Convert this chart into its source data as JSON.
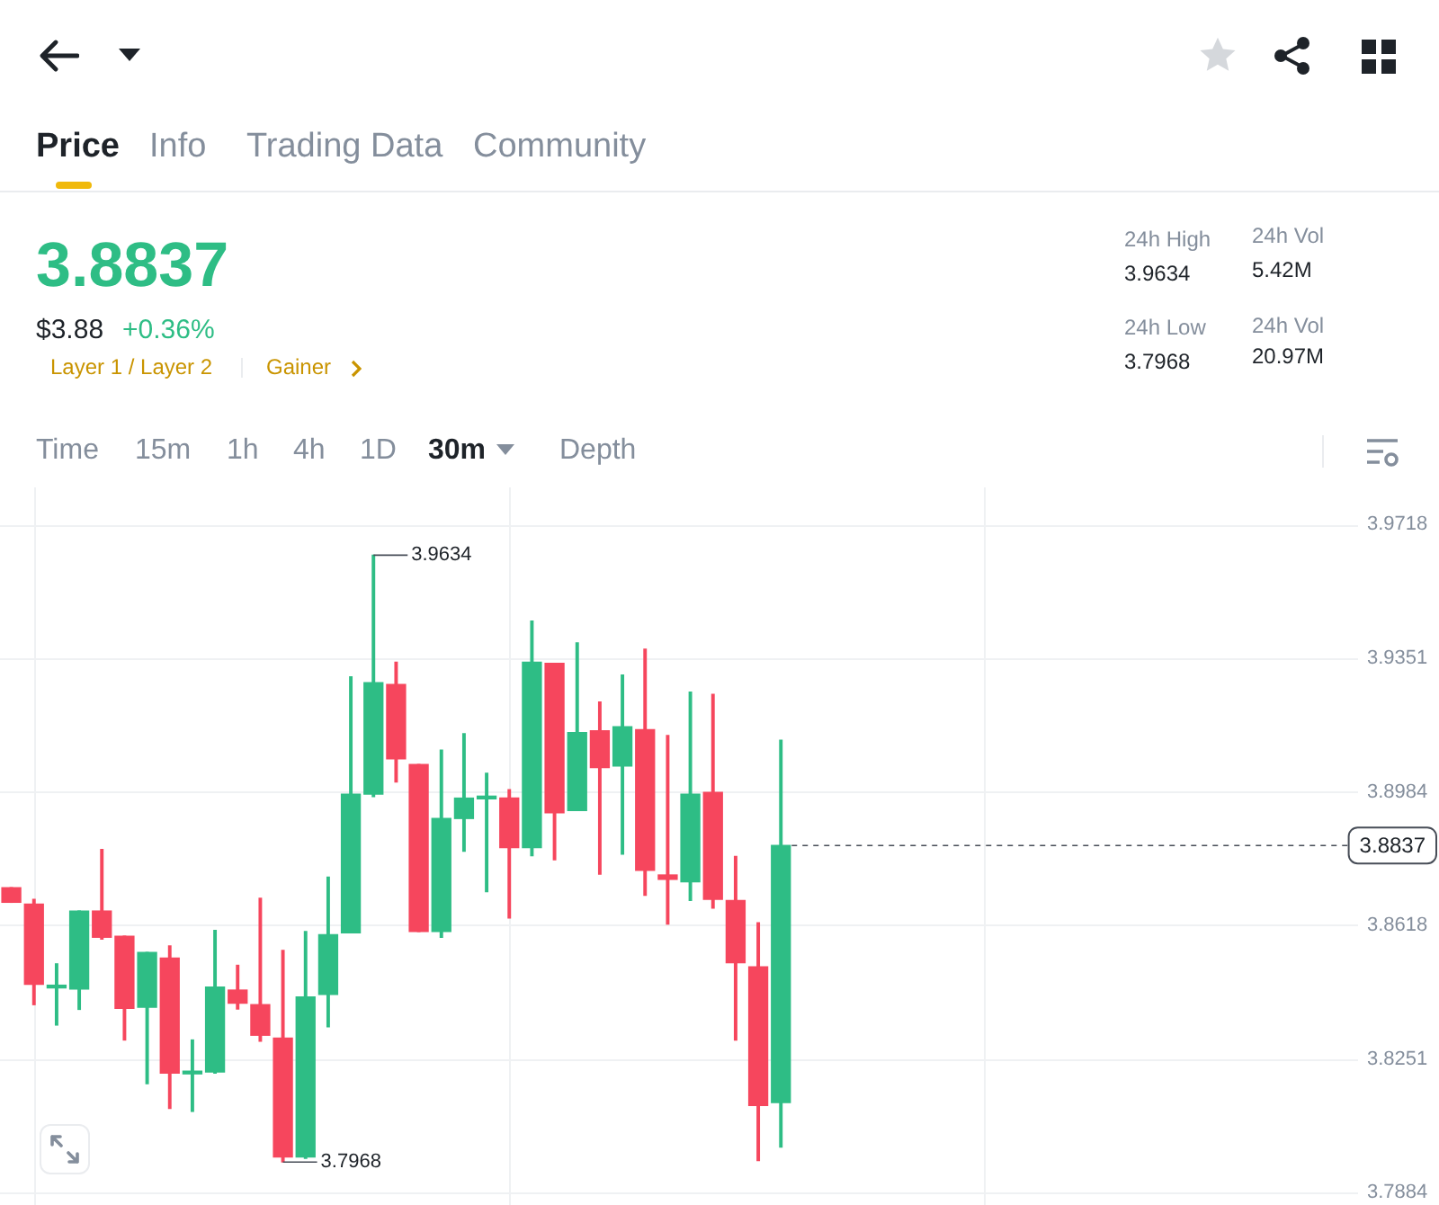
{
  "chart_data": {
    "type": "candlestick",
    "categories": [
      null,
      null,
      null,
      null,
      null,
      null,
      null,
      null,
      null,
      null,
      null,
      null,
      null,
      null,
      null,
      null,
      null,
      null,
      null,
      null,
      null,
      null,
      null,
      null,
      null,
      null,
      null,
      null,
      null,
      null,
      null,
      null,
      null,
      null,
      null,
      null,
      null,
      null,
      null,
      null,
      null,
      null,
      null,
      null,
      null,
      null,
      null,
      null,
      null,
      null,
      null,
      null,
      null,
      null,
      null,
      null,
      null,
      null,
      null,
      null
    ],
    "ohlc": [
      [
        3.8721,
        3.8721,
        3.8681,
        3.8681
      ],
      [
        3.8676,
        3.8689,
        3.84,
        3.8456
      ],
      [
        3.8446,
        3.8512,
        3.8344,
        3.845
      ],
      [
        3.8443,
        3.8657,
        3.8387,
        3.8657
      ],
      [
        3.8657,
        3.8826,
        3.858,
        3.8585
      ],
      [
        3.8588,
        3.8588,
        3.8303,
        3.839
      ],
      [
        3.8393,
        3.8543,
        3.8183,
        3.8543
      ],
      [
        3.8528,
        3.8561,
        3.8115,
        3.8212
      ],
      [
        3.821,
        3.8303,
        3.8107,
        3.8214
      ],
      [
        3.8215,
        3.8604,
        3.8212,
        3.8448
      ],
      [
        3.844,
        3.8508,
        3.8388,
        3.8404
      ],
      [
        3.84,
        3.8692,
        3.83,
        3.8316
      ],
      [
        3.8308,
        3.8549,
        3.7968,
        3.7982
      ],
      [
        3.7982,
        3.8601,
        3.7978,
        3.8421
      ],
      [
        3.8428,
        3.875,
        3.8339,
        3.8592
      ],
      [
        3.8597,
        3.93,
        3.8597,
        3.8978
      ],
      [
        3.8978,
        3.9634,
        3.8971,
        3.9284
      ],
      [
        3.9279,
        3.934,
        3.9011,
        3.9075
      ],
      [
        3.9059,
        3.9059,
        3.8601,
        3.8601
      ],
      [
        3.8601,
        3.9099,
        3.8585,
        3.8911
      ],
      [
        3.8911,
        3.9144,
        3.8821,
        3.8967
      ],
      [
        3.8965,
        3.9035,
        3.871,
        3.8969
      ],
      [
        3.8967,
        3.899,
        3.8638,
        3.8831
      ],
      [
        3.8831,
        3.9453,
        3.8809,
        3.934
      ],
      [
        3.9337,
        3.9337,
        3.8798,
        3.8927
      ],
      [
        3.8933,
        3.9393,
        3.8933,
        3.9147
      ],
      [
        3.9152,
        3.9231,
        3.8758,
        3.9051
      ],
      [
        3.9055,
        3.9305,
        3.8813,
        3.9163
      ],
      [
        3.9155,
        3.9376,
        3.87,
        3.8769
      ],
      [
        3.8756,
        3.9139,
        3.8621,
        3.8744
      ],
      [
        3.8737,
        3.9258,
        3.8686,
        3.8978
      ],
      [
        3.8983,
        3.9252,
        3.8665,
        3.8689
      ],
      [
        3.8686,
        3.8807,
        3.8303,
        3.8515
      ],
      [
        3.8504,
        3.8625,
        3.7972,
        3.8123
      ],
      [
        3.8131,
        3.9126,
        3.8009,
        3.8837
      ],
      null,
      null,
      null,
      null,
      null,
      null,
      null,
      null,
      null,
      null,
      null,
      null,
      null,
      null,
      null,
      null,
      null,
      null,
      null,
      null,
      null,
      null,
      null,
      null,
      null
    ],
    "colors": [
      "#f6465d",
      "#f6465d",
      "#2ebd85",
      "#2ebd85",
      "#f6465d",
      "#f6465d",
      "#2ebd85",
      "#f6465d",
      "#2ebd85",
      "#2ebd85",
      "#f6465d",
      "#f6465d",
      "#f6465d",
      "#2ebd85",
      "#2ebd85",
      "#2ebd85",
      "#2ebd85",
      "#f6465d",
      "#f6465d",
      "#2ebd85",
      "#2ebd85",
      "#2ebd85",
      "#f6465d",
      "#2ebd85",
      "#f6465d",
      "#2ebd85",
      "#f6465d",
      "#2ebd85",
      "#f6465d",
      "#f6465d",
      "#2ebd85",
      "#f6465d",
      "#f6465d",
      "#f6465d",
      "#2ebd85",
      null,
      null,
      null,
      null,
      null,
      null,
      null,
      null,
      null,
      null,
      null,
      null,
      null,
      null,
      null,
      null,
      null,
      null,
      null,
      null,
      null,
      null,
      null,
      null,
      null
    ],
    "ylim": [
      3.785,
      3.982
    ],
    "yticks": [
      3.7884,
      3.8251,
      3.8618,
      3.8984,
      3.9351,
      3.9718
    ],
    "grid": true,
    "tick_labels": "y",
    "ref_lines": [
      {
        "axis": "y",
        "value": 3.8837,
        "label": "3.8837",
        "color": "#474d57",
        "line_style": "dashed"
      }
    ],
    "annotations": [
      "Price",
      "Info",
      "Trading Data",
      "Community",
      "3.8837",
      "$3.88",
      "+0.36%",
      "Layer 1 / Layer 2",
      "Gainer",
      "24h High",
      "3.9634",
      "24h Low",
      "3.7968",
      "24h Vol",
      "5.42M",
      "24h Vol",
      "20.97M",
      "Time",
      "15m",
      "1h",
      "4h",
      "1D",
      "30m",
      "Depth",
      "3.9634",
      "3.7968"
    ]
  }
}
